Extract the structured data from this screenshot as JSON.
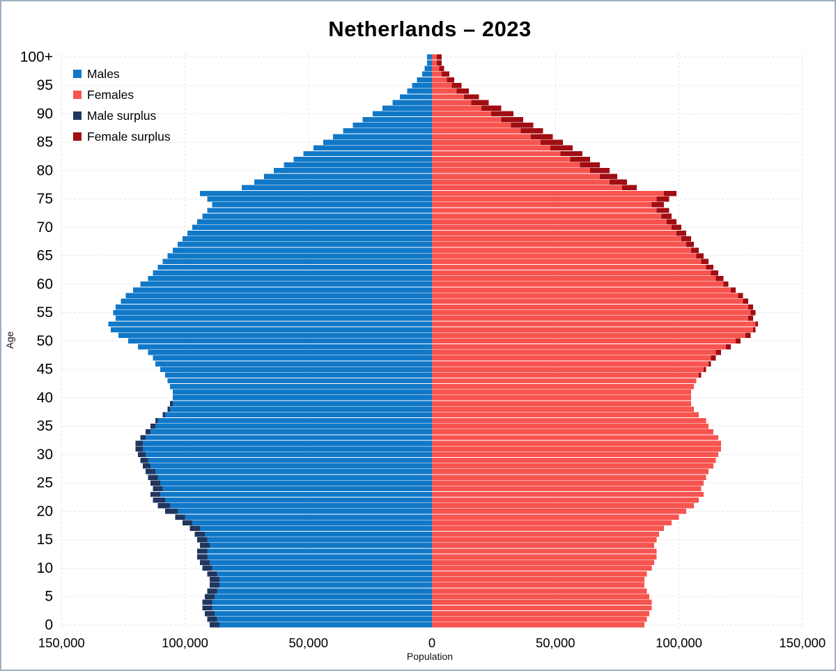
{
  "title": "Netherlands – 2023",
  "chart_data": {
    "type": "bar",
    "subtype": "population-pyramid",
    "title": "Netherlands – 2023",
    "xlabel": "Population",
    "ylabel": "Age",
    "unit": "persons; series values stored in thousands per single year of age (index = age, last index = 100+)",
    "xlim": [
      -150000,
      150000
    ],
    "x_ticks_thousands": [
      -150,
      -100,
      -50,
      0,
      50,
      100,
      150
    ],
    "x_tick_labels": [
      "150,000",
      "100,000",
      "50,000",
      "0",
      "50,000",
      "100,000",
      "150,000"
    ],
    "y_tick_ages": [
      0,
      5,
      10,
      15,
      20,
      25,
      30,
      35,
      40,
      45,
      50,
      55,
      60,
      65,
      70,
      75,
      80,
      85,
      90,
      95,
      100
    ],
    "y_tick_labels": [
      "0",
      "5",
      "10",
      "15",
      "20",
      "25",
      "30",
      "35",
      "40",
      "45",
      "50",
      "55",
      "60",
      "65",
      "70",
      "75",
      "80",
      "85",
      "90",
      "95",
      "100+"
    ],
    "grid": true,
    "legend_position": "top-left",
    "legend": [
      {
        "label": "Males",
        "color": "#1178c8"
      },
      {
        "label": "Females",
        "color": "#f75450"
      },
      {
        "label": "Male surplus",
        "color": "#21365f"
      },
      {
        "label": "Female surplus",
        "color": "#a00d12"
      }
    ],
    "series": [
      {
        "name": "Males",
        "values_thousands": [
          90,
          91,
          92,
          93,
          93,
          92,
          91,
          90,
          90,
          91,
          93,
          94,
          95,
          95,
          94,
          95,
          96,
          98,
          101,
          104,
          108,
          111,
          113,
          114,
          113,
          114,
          115,
          116,
          117,
          118,
          119,
          120,
          120,
          118,
          116,
          114,
          112,
          109,
          107,
          106,
          105,
          105,
          106,
          107,
          108,
          110,
          112,
          113,
          115,
          119,
          123,
          127,
          130,
          131,
          128,
          129,
          128,
          126,
          124,
          121,
          118,
          115,
          113,
          111,
          109,
          107,
          105,
          103,
          101,
          99,
          97,
          95,
          93,
          91,
          89,
          91,
          94,
          77,
          72,
          68,
          64,
          60,
          56,
          52,
          48,
          44,
          40,
          36,
          32,
          28,
          24,
          20,
          16,
          13,
          10,
          8,
          6,
          4,
          3,
          2,
          2
        ]
      },
      {
        "name": "Females",
        "values_thousands": [
          86,
          87,
          88,
          89,
          89,
          88,
          87,
          86,
          86,
          87,
          89,
          90,
          91,
          91,
          90,
          91,
          92,
          94,
          97,
          100,
          103,
          106,
          108,
          110,
          109,
          110,
          111,
          112,
          114,
          115,
          116,
          117,
          117,
          116,
          114,
          112,
          111,
          108,
          106,
          105,
          105,
          105,
          106,
          107,
          109,
          111,
          113,
          115,
          117,
          121,
          125,
          129,
          131,
          132,
          130,
          131,
          130,
          128,
          126,
          123,
          120,
          118,
          116,
          114,
          112,
          110,
          108,
          106,
          105,
          103,
          101,
          99,
          97,
          96,
          94,
          96,
          99,
          83,
          79,
          75,
          72,
          68,
          64,
          61,
          57,
          53,
          49,
          45,
          41,
          37,
          33,
          28,
          23,
          19,
          15,
          12,
          9,
          7,
          5,
          4,
          4
        ]
      }
    ]
  }
}
